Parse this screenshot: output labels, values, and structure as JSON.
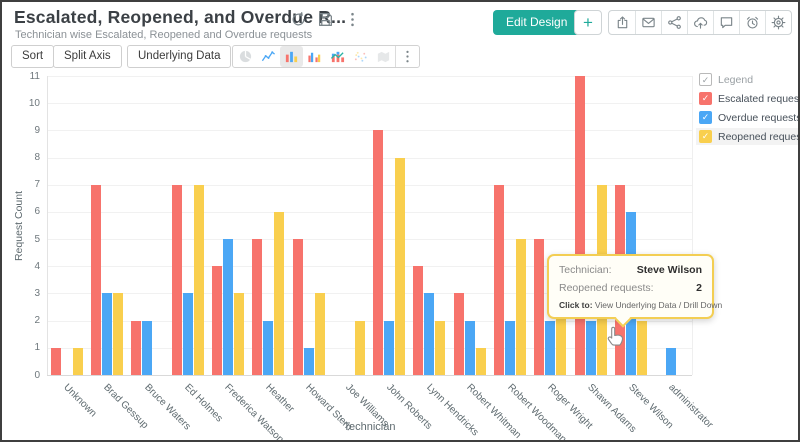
{
  "window": {
    "title": "Escalated, Reopened, and Overdue R...",
    "subtitle": "Technician wise Escalated, Reopened and Overdue requests"
  },
  "header": {
    "edit_design_label": "Edit Design",
    "plus_label": "+",
    "title_icons": [
      {
        "name": "refresh-icon"
      },
      {
        "name": "save-icon"
      },
      {
        "name": "kebab-icon"
      }
    ],
    "action_icons": [
      {
        "name": "export-icon"
      },
      {
        "name": "email-icon"
      },
      {
        "name": "share-icon"
      },
      {
        "name": "cloud-upload-icon"
      },
      {
        "name": "comment-icon"
      },
      {
        "name": "alarm-icon"
      },
      {
        "name": "settings-icon"
      }
    ]
  },
  "toolbar": {
    "buttons": [
      {
        "label": "Sort"
      },
      {
        "label": "Split Axis"
      },
      {
        "label": "Underlying Data"
      }
    ],
    "chart_types": [
      {
        "name": "pie-chart-icon",
        "state": "disabled"
      },
      {
        "name": "line-chart-icon",
        "state": "normal"
      },
      {
        "name": "bar-chart-icon",
        "state": "selected"
      },
      {
        "name": "grouped-bar-chart-icon",
        "state": "normal"
      },
      {
        "name": "stacked-bar-chart-icon",
        "state": "normal"
      },
      {
        "name": "scatter-chart-icon",
        "state": "disabled"
      },
      {
        "name": "map-chart-icon",
        "state": "disabled"
      },
      {
        "name": "kebab-icon",
        "state": "normal"
      }
    ]
  },
  "legend": {
    "title": "Legend",
    "items": [
      {
        "label": "Escalated requests",
        "color": "#f7736c",
        "checked": true,
        "highlighted": false
      },
      {
        "label": "Overdue requests",
        "color": "#4ba7f5",
        "checked": true,
        "highlighted": false
      },
      {
        "label": "Reopened requests",
        "color": "#f9cf4e",
        "checked": true,
        "highlighted": true
      }
    ]
  },
  "tooltip": {
    "rows": [
      {
        "label": "Technician:",
        "value": "Steve Wilson"
      },
      {
        "label": "Reopened requests:",
        "value": "2"
      }
    ],
    "footer_label": "Click to:",
    "footer_text": " View Underlying Data / Drill Down"
  },
  "chart_data": {
    "type": "bar",
    "title": "Escalated, Reopened, and Overdue requests by Technician",
    "xlabel": "Technician",
    "ylabel": "Request Count",
    "ylim": [
      0,
      11
    ],
    "grid": true,
    "legend_position": "right",
    "categories": [
      "Unknown",
      "Brad Gessup",
      "Bruce Waters",
      "Ed Holmes",
      "Frederica Watson",
      "Heather",
      "Howard Stern",
      "Joe Williams",
      "John Roberts",
      "Lynn Hendricks",
      "Robert Whitman",
      "Robert Woodman",
      "Roger Wright",
      "Shawn Adams",
      "Steve Wilson",
      "administrator"
    ],
    "series": [
      {
        "name": "Escalated requests",
        "color": "#f7736c",
        "values": [
          1,
          7,
          2,
          7,
          4,
          5,
          5,
          0,
          9,
          4,
          3,
          7,
          5,
          11,
          7,
          0
        ]
      },
      {
        "name": "Overdue requests",
        "color": "#4ba7f5",
        "values": [
          0,
          3,
          2,
          3,
          5,
          2,
          1,
          0,
          2,
          3,
          2,
          2,
          2,
          2,
          6,
          1
        ]
      },
      {
        "name": "Reopened requests",
        "color": "#f9cf4e",
        "values": [
          1,
          3,
          0,
          7,
          3,
          6,
          3,
          2,
          8,
          2,
          1,
          5,
          4,
          7,
          2,
          0
        ]
      }
    ],
    "highlighted": {
      "category": "Steve Wilson",
      "series": "Reopened requests"
    }
  },
  "colors": {
    "accent": "#1faa9a",
    "bar_red": "#f7736c",
    "bar_blue": "#4ba7f5",
    "bar_yellow": "#f9cf4e"
  }
}
